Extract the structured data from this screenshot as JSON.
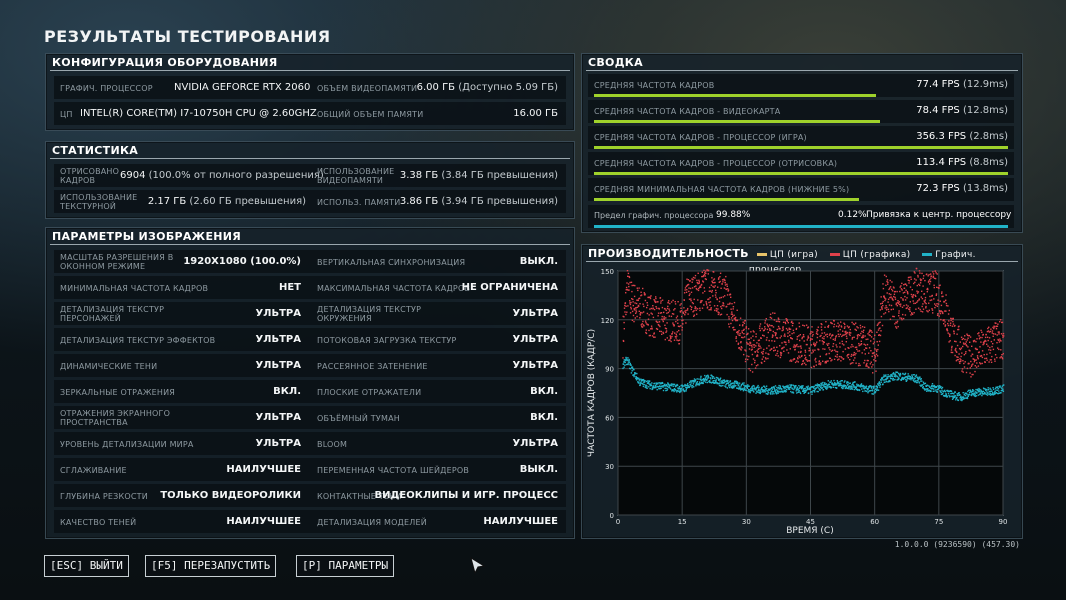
{
  "title": "РЕЗУЛЬТАТЫ ТЕСТИРОВАНИЯ",
  "config": {
    "header": "КОНФИГУРАЦИЯ ОБОРУДОВАНИЯ",
    "gpu_label": "ГРАФИЧ. ПРОЦЕССОР",
    "gpu_value": "NVIDIA GEFORCE RTX 2060",
    "vram_label": "ОБЪЕМ ВИДЕОПАМЯТИ",
    "vram_value": "6.00 ГБ",
    "vram_extra": "(Доступно 5.09 ГБ)",
    "cpu_label": "ЦП",
    "cpu_value": "INTEL(R) CORE(TM) I7-10750H CPU @ 2.60GHZ",
    "ram_label": "ОБЩИЙ ОБЪЕМ ПАМЯТИ",
    "ram_value": "16.00 ГБ"
  },
  "stats": {
    "header": "СТАТИСТИКА",
    "rendered_label": "ОТРИСОВАНО КАДРОВ",
    "rendered_value": "6904",
    "rendered_extra": "(100.0% от полного разрешения)",
    "vram_used_label": "ИСПОЛЬЗОВАНИЕ ВИДЕОПАМЯТИ",
    "vram_used_value": "3.38 ГБ",
    "vram_used_extra": "(3.84 ГБ превышения)",
    "tex_label": "ИСПОЛЬЗОВАНИЕ ТЕКСТУРНОЙ",
    "tex_value": "2.17 ГБ",
    "tex_extra": "(2.60 ГБ превышения)",
    "mem_label": "ИСПОЛЬЗ. ПАМЯТИ",
    "mem_value": "3.86 ГБ",
    "mem_extra": "(3.94 ГБ превышения)"
  },
  "image_params": {
    "header": "ПАРАМЕТРЫ ИЗОБРАЖЕНИЯ",
    "rows": [
      {
        "l1": "МАСШТАБ РАЗРЕШЕНИЯ В ОКОННОМ РЕЖИМЕ",
        "v1": "1920X1080 (100.0%)",
        "l2": "ВЕРТИКАЛЬНАЯ СИНХРОНИЗАЦИЯ",
        "v2": "ВЫКЛ."
      },
      {
        "l1": "МИНИМАЛЬНАЯ ЧАСТОТА КАДРОВ",
        "v1": "НЕТ",
        "l2": "МАКСИМАЛЬНАЯ ЧАСТОТА КАДРОВ",
        "v2": "НЕ ОГРАНИЧЕНА"
      },
      {
        "l1": "ДЕТАЛИЗАЦИЯ ТЕКСТУР ПЕРСОНАЖЕЙ",
        "v1": "УЛЬТРА",
        "l2": "ДЕТАЛИЗАЦИЯ ТЕКСТУР ОКРУЖЕНИЯ",
        "v2": "УЛЬТРА"
      },
      {
        "l1": "ДЕТАЛИЗАЦИЯ ТЕКСТУР ЭФФЕКТОВ",
        "v1": "УЛЬТРА",
        "l2": "ПОТОКОВАЯ ЗАГРУЗКА ТЕКСТУР",
        "v2": "УЛЬТРА"
      },
      {
        "l1": "ДИНАМИЧЕСКИЕ ТЕНИ",
        "v1": "УЛЬТРА",
        "l2": "РАССЕЯННОЕ ЗАТЕНЕНИЕ",
        "v2": "УЛЬТРА"
      },
      {
        "l1": "ЗЕРКАЛЬНЫЕ ОТРАЖЕНИЯ",
        "v1": "ВКЛ.",
        "l2": "ПЛОСКИЕ ОТРАЖАТЕЛИ",
        "v2": "ВКЛ."
      },
      {
        "l1": "ОТРАЖЕНИЯ ЭКРАННОГО ПРОСТРАНСТВА",
        "v1": "УЛЬТРА",
        "l2": "ОБЪЁМНЫЙ ТУМАН",
        "v2": "ВКЛ."
      },
      {
        "l1": "УРОВЕНЬ ДЕТАЛИЗАЦИИ МИРА",
        "v1": "УЛЬТРА",
        "l2": "BLOOM",
        "v2": "УЛЬТРА"
      },
      {
        "l1": "СГЛАЖИВАНИЕ",
        "v1": "НАИЛУЧШЕЕ",
        "l2": "ПЕРЕМЕННАЯ ЧАСТОТА ШЕЙДЕРОВ",
        "v2": "ВЫКЛ."
      },
      {
        "l1": "ГЛУБИНА РЕЗКОСТИ",
        "v1": "ТОЛЬКО ВИДЕОРОЛИКИ",
        "l2": "КОНТАКТНЫЕ ТЕНИ",
        "v2": "ВИДЕОКЛИПЫ И ИГР. ПРОЦЕСС"
      },
      {
        "l1": "КАЧЕСТВО ТЕНЕЙ",
        "v1": "НАИЛУЧШЕЕ",
        "l2": "ДЕТАЛИЗАЦИЯ МОДЕЛЕЙ",
        "v2": "НАИЛУЧШЕЕ"
      }
    ]
  },
  "summary": {
    "header": "СВОДКА",
    "rows": [
      {
        "label": "СРЕДНЯЯ ЧАСТОТА КАДРОВ",
        "value": "77.4 FPS",
        "extra": "(12.9ms)",
        "bar": 0.68
      },
      {
        "label": "СРЕДНЯЯ ЧАСТОТА КАДРОВ - ВИДЕОКАРТА",
        "value": "78.4 FPS",
        "extra": "(12.8ms)",
        "bar": 0.69
      },
      {
        "label": "СРЕДНЯЯ ЧАСТОТА КАДРОВ - ПРОЦЕССОР (ИГРА)",
        "value": "356.3 FPS",
        "extra": "(2.8ms)",
        "bar": 1.0
      },
      {
        "label": "СРЕДНЯЯ ЧАСТОТА КАДРОВ - ПРОЦЕССОР (ОТРИСОВКА)",
        "value": "113.4 FPS",
        "extra": "(8.8ms)",
        "bar": 1.0
      },
      {
        "label": "СРЕДНЯЯ МИНИМАЛЬНАЯ ЧАСТОТА КАДРОВ (НИЖНИЕ 5%)",
        "value": "72.3 FPS",
        "extra": "(13.8ms)",
        "bar": 0.64
      }
    ],
    "bound": {
      "gpu_label": "Предел графич. процессора",
      "gpu_pct": "99.88%",
      "gpu_fraction": 0.9988,
      "cpu_pct": "0.12%",
      "cpu_label": "Привязка к центр. процессору"
    }
  },
  "performance": {
    "header": "ПРОИЗВОДИТЕЛЬНОСТЬ",
    "legend": [
      {
        "label": "ЦП (игра)",
        "color": "#e8c46a"
      },
      {
        "label": "ЦП (графика)",
        "color": "#e0414b"
      },
      {
        "label": "Графич. процессор",
        "color": "#21b3c8"
      }
    ]
  },
  "chart_data": {
    "type": "scatter",
    "xlabel": "ВРЕМЯ (С)",
    "ylabel": "ЧАСТОТА КАДРОВ (КАДР/С)",
    "xlim": [
      0,
      90
    ],
    "ylim": [
      0,
      150
    ],
    "xticks": [
      0,
      15,
      30,
      45,
      60,
      75,
      90
    ],
    "yticks": [
      0,
      30,
      60,
      90,
      120,
      150
    ],
    "grid": true,
    "series": [
      {
        "name": "ЦП (графика)",
        "color": "#e0414b",
        "x": [
          1,
          2,
          3,
          5,
          8,
          12,
          15,
          16,
          18,
          20,
          22,
          25,
          27,
          29,
          31,
          33,
          36,
          40,
          45,
          50,
          55,
          58,
          60,
          62,
          65,
          68,
          70,
          72,
          74,
          76,
          78,
          80,
          82,
          84,
          86,
          88,
          90
        ],
        "y": [
          110,
          140,
          132,
          128,
          122,
          120,
          118,
          134,
          136,
          140,
          138,
          135,
          120,
          110,
          100,
          105,
          112,
          108,
          104,
          108,
          106,
          104,
          98,
          136,
          128,
          135,
          140,
          136,
          138,
          130,
          110,
          102,
          98,
          100,
          104,
          106,
          110
        ]
      },
      {
        "name": "Графич. процессор",
        "color": "#21b3c8",
        "x": [
          1,
          2,
          3,
          5,
          8,
          12,
          15,
          18,
          20,
          22,
          25,
          28,
          31,
          35,
          40,
          45,
          48,
          50,
          55,
          58,
          60,
          62,
          65,
          70,
          72,
          74,
          76,
          78,
          80,
          82,
          84,
          86,
          88,
          90
        ],
        "y": [
          92,
          96,
          90,
          82,
          80,
          79,
          78,
          82,
          84,
          84,
          81,
          80,
          78,
          77,
          78,
          77,
          80,
          81,
          80,
          78,
          77,
          84,
          86,
          84,
          78,
          79,
          76,
          74,
          73,
          75,
          76,
          76,
          77,
          78
        ]
      }
    ]
  },
  "buttons": {
    "exit": "[ESC] ВЫЙТИ",
    "restart": "[F5] ПЕРЕЗАПУСТИТЬ",
    "params": "[P] ПАРАМЕТРЫ"
  },
  "version": "1.0.0.0 (9236590) (457.30)"
}
